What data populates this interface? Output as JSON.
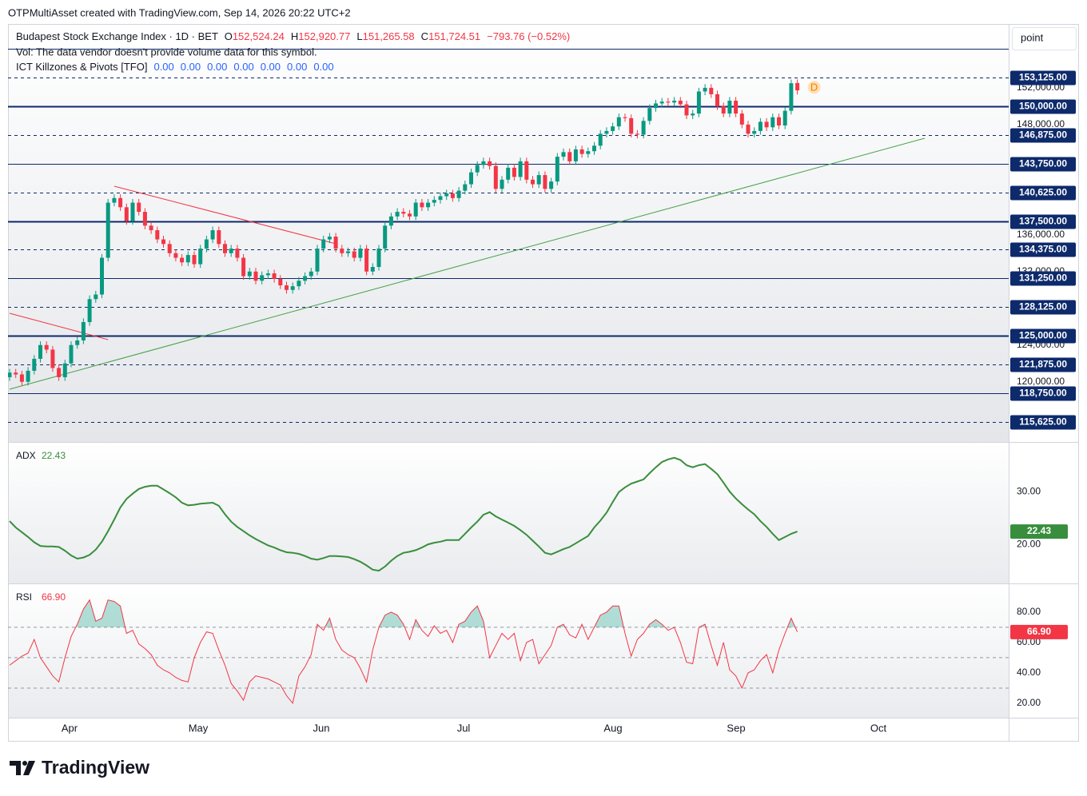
{
  "header": {
    "attribution": "OTPMultiAsset created with TradingView.com, Sep 14, 2026 20:22 UTC+2"
  },
  "legend": {
    "symbol": "Budapest Stock Exchange Index · 1D · BET",
    "ohlc": [
      {
        "key": "O",
        "value": "152,524.24"
      },
      {
        "key": "H",
        "value": "152,920.77"
      },
      {
        "key": "L",
        "value": "151,265.58"
      },
      {
        "key": "C",
        "value": "151,724.51"
      }
    ],
    "change": "−793.76 (−0.52%)",
    "volume_note": "Vol: The data vendor doesn't provide volume data for this symbol.",
    "indicator": "ICT Killzones & Pivots [TFO]",
    "indicator_values": [
      "0.00",
      "0.00",
      "0.00",
      "0.00",
      "0.00",
      "0.00",
      "0.00"
    ]
  },
  "scale_button": "point",
  "logo": "TradingView",
  "time_axis": {
    "labels": [
      "Apr",
      "May",
      "Jun",
      "Jul",
      "Aug",
      "Sep",
      "Oct"
    ]
  },
  "chart_data": [
    {
      "type": "candlestick",
      "up_color": "#089981",
      "down_color": "#f23645",
      "marker": "D",
      "ylim": [
        113450,
        158950
      ],
      "yticks": [
        {
          "value": 152000,
          "label": "152,000.00"
        },
        {
          "value": 148000,
          "label": "148,000.00"
        },
        {
          "value": 136000,
          "label": "136,000.00"
        },
        {
          "value": 132000,
          "label": "132,000.00"
        },
        {
          "value": 124000,
          "label": "124,000.00"
        },
        {
          "value": 120000,
          "label": "120,000.00"
        }
      ],
      "levels": [
        {
          "value": 156250,
          "style": "solid"
        },
        {
          "value": 153125,
          "label": "153,125.00",
          "style": "dashed"
        },
        {
          "value": 150000,
          "label": "150,000.00",
          "style": "bold"
        },
        {
          "value": 146875,
          "label": "146,875.00",
          "style": "dashed"
        },
        {
          "value": 143750,
          "label": "143,750.00",
          "style": "solid"
        },
        {
          "value": 140625,
          "label": "140,625.00",
          "style": "dashed"
        },
        {
          "value": 137500,
          "label": "137,500.00",
          "style": "bold"
        },
        {
          "value": 134375,
          "label": "134,375.00",
          "style": "dashed"
        },
        {
          "value": 131250,
          "label": "131,250.00",
          "style": "solid"
        },
        {
          "value": 128125,
          "label": "128,125.00",
          "style": "dashed"
        },
        {
          "value": 125000,
          "label": "125,000.00",
          "style": "bold"
        },
        {
          "value": 121875,
          "label": "121,875.00",
          "style": "dashed"
        },
        {
          "value": 118750,
          "label": "118,750.00",
          "style": "solid"
        },
        {
          "value": 115625,
          "label": "115,625.00",
          "style": "dashed"
        }
      ],
      "level_color": "#0d2a6b",
      "trendlines": [
        {
          "color": "#f23645",
          "points": [
            [
              0,
              127460
            ],
            [
              16,
              124589
            ]
          ]
        },
        {
          "color": "#f23645",
          "points": [
            [
              17,
              141293
            ],
            [
              53,
              135029
            ]
          ]
        },
        {
          "color": "#43a047",
          "points": [
            [
              0,
              119195
            ],
            [
              148.7,
              146513
            ]
          ]
        }
      ],
      "open": [
        120500,
        121000,
        120800,
        120000,
        121200,
        122500,
        124000,
        123500,
        121500,
        120500,
        122000,
        124000,
        124500,
        126500,
        129000,
        129500,
        133500,
        139500,
        140000,
        139000,
        137500,
        139500,
        138500,
        137000,
        136500,
        135500,
        135000,
        134000,
        133500,
        133000,
        133800,
        132800,
        134500,
        135500,
        136500,
        135000,
        134000,
        134500,
        133500,
        131500,
        132000,
        131000,
        131600,
        131800,
        131200,
        130500,
        130000,
        130400,
        131000,
        131500,
        132000,
        134500,
        135500,
        135800,
        134500,
        134000,
        134200,
        133500,
        134500,
        132000,
        132500,
        134500,
        137000,
        138000,
        138500,
        138300,
        138000,
        139500,
        139000,
        139500,
        139800,
        140200,
        140500,
        140000,
        140800,
        141500,
        142800,
        143600,
        144000,
        143500,
        141000,
        142000,
        143300,
        142300,
        144000,
        142000,
        141500,
        142500,
        141000,
        141800,
        144500,
        145000,
        144000,
        145300,
        144800,
        145100,
        145700,
        147000,
        147300,
        147800,
        148800,
        148700,
        147000,
        146900,
        148400,
        149800,
        150300,
        150500,
        150400,
        150600,
        150200,
        149000,
        149200,
        151600,
        152000,
        151300,
        150000,
        149200,
        150600,
        149200,
        148000,
        147000,
        147300,
        148300,
        147700,
        148800,
        147900,
        149500,
        152524.24
      ],
      "high": [
        121400,
        121400,
        121200,
        121600,
        122900,
        124400,
        124400,
        123900,
        121900,
        122400,
        124400,
        124900,
        126900,
        129400,
        129900,
        133900,
        139900,
        140400,
        140400,
        139400,
        139900,
        139900,
        138900,
        137400,
        136900,
        135900,
        135400,
        134400,
        133900,
        134200,
        134200,
        134900,
        135900,
        136900,
        136900,
        135400,
        134900,
        134900,
        133900,
        132400,
        132400,
        132000,
        132200,
        132200,
        131600,
        130900,
        130800,
        131400,
        131900,
        132400,
        134900,
        135900,
        136200,
        136200,
        134900,
        134600,
        134600,
        134900,
        134900,
        132900,
        134900,
        137400,
        138400,
        138900,
        138900,
        138700,
        139900,
        139900,
        139900,
        140200,
        140600,
        140900,
        140900,
        141200,
        141900,
        143200,
        144000,
        144400,
        144400,
        143900,
        142400,
        143700,
        143700,
        144400,
        144400,
        142400,
        142900,
        142900,
        142200,
        144900,
        145400,
        145400,
        145700,
        145700,
        145500,
        146100,
        147400,
        147700,
        148200,
        149200,
        149200,
        149100,
        147400,
        148800,
        150200,
        150700,
        150900,
        150900,
        151000,
        151000,
        150600,
        149600,
        152000,
        152400,
        152400,
        151700,
        150400,
        151000,
        151000,
        149600,
        148400,
        147700,
        148700,
        148700,
        149200,
        149200,
        149900,
        152900,
        152920.77
      ],
      "low": [
        120100,
        120400,
        119600,
        119600,
        120800,
        122100,
        123100,
        121100,
        120100,
        120100,
        121600,
        123600,
        124100,
        126100,
        128600,
        129100,
        133100,
        139100,
        138600,
        137100,
        137100,
        138100,
        136600,
        136100,
        135100,
        134600,
        133600,
        133100,
        132600,
        132600,
        132400,
        132400,
        134100,
        135100,
        134600,
        133600,
        133600,
        133100,
        131100,
        131100,
        130600,
        130600,
        131200,
        130800,
        130100,
        129600,
        129600,
        130000,
        130600,
        131100,
        131600,
        134100,
        135100,
        134100,
        133600,
        133600,
        133100,
        133100,
        131600,
        131600,
        132100,
        134100,
        136600,
        137600,
        137900,
        137600,
        137600,
        138600,
        138600,
        139100,
        139400,
        139800,
        139600,
        139600,
        140400,
        141100,
        142400,
        143200,
        143100,
        140600,
        140600,
        141600,
        141900,
        141900,
        141600,
        141100,
        141100,
        140600,
        140600,
        141400,
        144100,
        143600,
        143600,
        144400,
        144400,
        144700,
        145300,
        146600,
        146900,
        147400,
        148300,
        146600,
        146500,
        146500,
        148000,
        149400,
        149900,
        150000,
        150000,
        149800,
        148600,
        148600,
        148800,
        151200,
        150900,
        149600,
        148800,
        148800,
        148800,
        147600,
        146600,
        146600,
        146900,
        147300,
        147300,
        147500,
        147500,
        149100,
        151265.58
      ],
      "close": [
        121000,
        120800,
        120000,
        121200,
        122500,
        124000,
        123500,
        121500,
        120500,
        122000,
        124000,
        124500,
        126500,
        129000,
        129500,
        133500,
        139500,
        140000,
        139000,
        137500,
        139500,
        138500,
        137000,
        136500,
        135500,
        135000,
        134000,
        133500,
        133000,
        133800,
        132800,
        134500,
        135500,
        136500,
        135000,
        134000,
        134500,
        133500,
        131500,
        132000,
        131000,
        131600,
        131800,
        131200,
        130500,
        130000,
        130400,
        131000,
        131500,
        132000,
        134500,
        135500,
        135800,
        134500,
        134000,
        134200,
        133500,
        134500,
        132000,
        132500,
        134500,
        137000,
        138000,
        138500,
        138300,
        138000,
        139500,
        139000,
        139500,
        139800,
        140200,
        140500,
        140000,
        140800,
        141500,
        142800,
        143600,
        144000,
        143500,
        141000,
        142000,
        143300,
        142300,
        144000,
        142000,
        141500,
        142500,
        141000,
        141800,
        144500,
        145000,
        144000,
        145300,
        144800,
        145100,
        145700,
        147000,
        147300,
        147800,
        148800,
        148700,
        147000,
        146900,
        148400,
        149800,
        150300,
        150500,
        150400,
        150600,
        150200,
        149000,
        149200,
        151600,
        152000,
        151300,
        150000,
        149200,
        150600,
        149200,
        148000,
        147000,
        147300,
        148300,
        147700,
        148800,
        147900,
        149500,
        152500,
        151724.51
      ]
    },
    {
      "type": "line",
      "title": "ADX",
      "value_label": "22.43",
      "color": "#388e3c",
      "ylim": [
        12.6,
        39.4
      ],
      "yticks": [
        {
          "value": 20,
          "label": "20.00"
        },
        {
          "value": 30,
          "label": "30.00"
        }
      ],
      "values": [
        24.4,
        23.2,
        22.3,
        21.4,
        20.4,
        19.7,
        19.6,
        19.6,
        19.5,
        18.8,
        17.9,
        17.3,
        17.5,
        18.0,
        19.0,
        20.5,
        22.5,
        24.7,
        27.0,
        28.6,
        29.6,
        30.5,
        30.9,
        31.1,
        31.1,
        30.4,
        29.7,
        28.9,
        27.9,
        27.4,
        27.5,
        27.7,
        27.8,
        27.9,
        27.3,
        25.7,
        24.3,
        23.3,
        22.5,
        21.7,
        21.0,
        20.4,
        19.8,
        19.4,
        18.9,
        18.5,
        18.4,
        18.2,
        17.8,
        17.3,
        17.1,
        17.4,
        17.8,
        17.8,
        17.7,
        17.6,
        17.2,
        16.7,
        16.0,
        15.2,
        15.0,
        15.8,
        16.9,
        17.8,
        18.4,
        18.6,
        18.9,
        19.4,
        20.0,
        20.3,
        20.5,
        20.8,
        20.8,
        20.8,
        22.0,
        23.2,
        24.3,
        25.6,
        26.1,
        25.3,
        24.7,
        24.1,
        23.5,
        22.7,
        21.8,
        20.7,
        19.6,
        18.4,
        18.1,
        18.6,
        19.1,
        19.5,
        20.2,
        20.9,
        21.6,
        23.2,
        24.5,
        26.0,
        28.0,
        29.9,
        30.8,
        31.5,
        31.9,
        32.3,
        33.5,
        34.6,
        35.6,
        36.1,
        36.4,
        36.0,
        35.0,
        34.6,
        35.0,
        35.2,
        34.3,
        33.3,
        31.7,
        30.0,
        28.7,
        27.6,
        26.6,
        25.7,
        24.4,
        23.3,
        22.0,
        20.8,
        21.4,
        22.0,
        22.43
      ]
    },
    {
      "type": "line",
      "title": "RSI",
      "value_label": "66.90",
      "color": "#f23645",
      "fill_color": "#089981",
      "ylim": [
        10.5,
        98.9
      ],
      "yticks": [
        {
          "value": 20,
          "label": "20.00"
        },
        {
          "value": 40,
          "label": "40.00"
        },
        {
          "value": 60,
          "label": "60.00"
        },
        {
          "value": 80,
          "label": "80.00"
        }
      ],
      "bands": [
        70,
        50,
        30
      ],
      "values": [
        45,
        48,
        51,
        53,
        62,
        50,
        44,
        38,
        34,
        50,
        64,
        72,
        82,
        88,
        74,
        76,
        88,
        87,
        84,
        66,
        68,
        59,
        56,
        52,
        45,
        42,
        40,
        37,
        35,
        34,
        50,
        60,
        67,
        66,
        55,
        45,
        33,
        28,
        22,
        34,
        38,
        37,
        36,
        34,
        32,
        25,
        20,
        38,
        44,
        52,
        72,
        68,
        76,
        62,
        55,
        52,
        50,
        43,
        34,
        55,
        70,
        78,
        80,
        78,
        72,
        62,
        75,
        68,
        64,
        71,
        66,
        68,
        60,
        72,
        74,
        80,
        84,
        74,
        50,
        58,
        66,
        62,
        66,
        48,
        60,
        62,
        46,
        52,
        58,
        70,
        72,
        65,
        63,
        72,
        62,
        70,
        78,
        80,
        84,
        84,
        66,
        51,
        62,
        66,
        72,
        75,
        72,
        68,
        70,
        60,
        47,
        46,
        70,
        72,
        58,
        45,
        60,
        42,
        38,
        30,
        40,
        42,
        48,
        52,
        40,
        55,
        66,
        76,
        66.9
      ]
    }
  ]
}
